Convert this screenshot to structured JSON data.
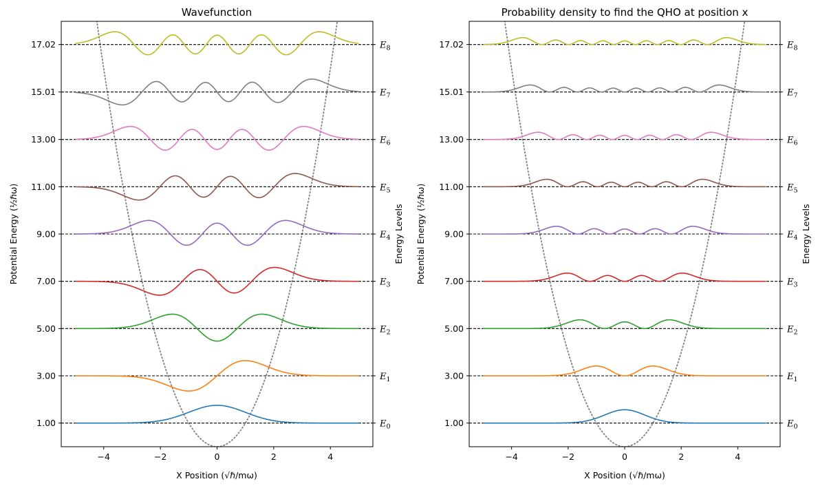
{
  "chart_data": [
    {
      "type": "line",
      "mode": "wavefunction",
      "title": "Wavefunction",
      "xlabel": "X Position (√ℏ/mω)",
      "ylabel": "Potential Energy (½ℏω)",
      "ylabel_right": "Energy Levels",
      "xlim": [
        -5.5,
        5.5
      ],
      "ylim": [
        0,
        18
      ],
      "x_range": [
        -5,
        5
      ],
      "xticks": [
        -4,
        -2,
        0,
        2,
        4
      ],
      "ytick_values": [
        1.0,
        3.0,
        5.0,
        7.0,
        9.0,
        11.0,
        13.0,
        15.01,
        17.02
      ],
      "ytick_labels": [
        "1.00",
        "3.00",
        "5.00",
        "7.00",
        "9.00",
        "11.00",
        "13.00",
        "15.01",
        "17.02"
      ],
      "energy_levels": [
        1.0,
        3.0,
        5.0,
        7.0,
        9.0,
        11.0,
        13.0,
        15.01,
        17.02
      ],
      "right_labels": [
        {
          "base": "E",
          "sub": "0"
        },
        {
          "base": "E",
          "sub": "1"
        },
        {
          "base": "E",
          "sub": "2"
        },
        {
          "base": "E",
          "sub": "3"
        },
        {
          "base": "E",
          "sub": "4"
        },
        {
          "base": "E",
          "sub": "5"
        },
        {
          "base": "E",
          "sub": "6"
        },
        {
          "base": "E",
          "sub": "7"
        },
        {
          "base": "E",
          "sub": "8"
        }
      ],
      "potential": {
        "expr": "x^2",
        "style": "dotted",
        "color": "#808080"
      },
      "amplitude_scale": 1.0,
      "series": [
        {
          "n": 0,
          "color": "#1f77b4"
        },
        {
          "n": 1,
          "color": "#ff7f0e"
        },
        {
          "n": 2,
          "color": "#2ca02c"
        },
        {
          "n": 3,
          "color": "#d62728"
        },
        {
          "n": 4,
          "color": "#9467bd"
        },
        {
          "n": 5,
          "color": "#8c564b"
        },
        {
          "n": 6,
          "color": "#e377c2"
        },
        {
          "n": 7,
          "color": "#7f7f7f"
        },
        {
          "n": 8,
          "color": "#bcbd22"
        }
      ]
    },
    {
      "type": "line",
      "mode": "density",
      "title": "Probability density to find the QHO at position x",
      "xlabel": "X Position (√ℏ/mω)",
      "ylabel": "Potential Energy (½ℏω)",
      "ylabel_right": "Energy Levels",
      "xlim": [
        -5.5,
        5.5
      ],
      "ylim": [
        0,
        18
      ],
      "x_range": [
        -5,
        5
      ],
      "xticks": [
        -4,
        -2,
        0,
        2,
        4
      ],
      "ytick_values": [
        1.0,
        3.0,
        5.0,
        7.0,
        9.0,
        11.0,
        13.0,
        15.01,
        17.02
      ],
      "ytick_labels": [
        "1.00",
        "3.00",
        "5.00",
        "7.00",
        "9.00",
        "11.00",
        "13.00",
        "15.01",
        "17.02"
      ],
      "energy_levels": [
        1.0,
        3.0,
        5.0,
        7.0,
        9.0,
        11.0,
        13.0,
        15.01,
        17.02
      ],
      "right_labels": [
        {
          "base": "E",
          "sub": "0"
        },
        {
          "base": "E",
          "sub": "1"
        },
        {
          "base": "E",
          "sub": "2"
        },
        {
          "base": "E",
          "sub": "3"
        },
        {
          "base": "E",
          "sub": "4"
        },
        {
          "base": "E",
          "sub": "5"
        },
        {
          "base": "E",
          "sub": "6"
        },
        {
          "base": "E",
          "sub": "7"
        },
        {
          "base": "E",
          "sub": "8"
        }
      ],
      "potential": {
        "expr": "x^2",
        "style": "dotted",
        "color": "#808080"
      },
      "amplitude_scale": 1.0,
      "series": [
        {
          "n": 0,
          "color": "#1f77b4"
        },
        {
          "n": 1,
          "color": "#ff7f0e"
        },
        {
          "n": 2,
          "color": "#2ca02c"
        },
        {
          "n": 3,
          "color": "#d62728"
        },
        {
          "n": 4,
          "color": "#9467bd"
        },
        {
          "n": 5,
          "color": "#8c564b"
        },
        {
          "n": 6,
          "color": "#e377c2"
        },
        {
          "n": 7,
          "color": "#7f7f7f"
        },
        {
          "n": 8,
          "color": "#bcbd22"
        }
      ]
    }
  ]
}
